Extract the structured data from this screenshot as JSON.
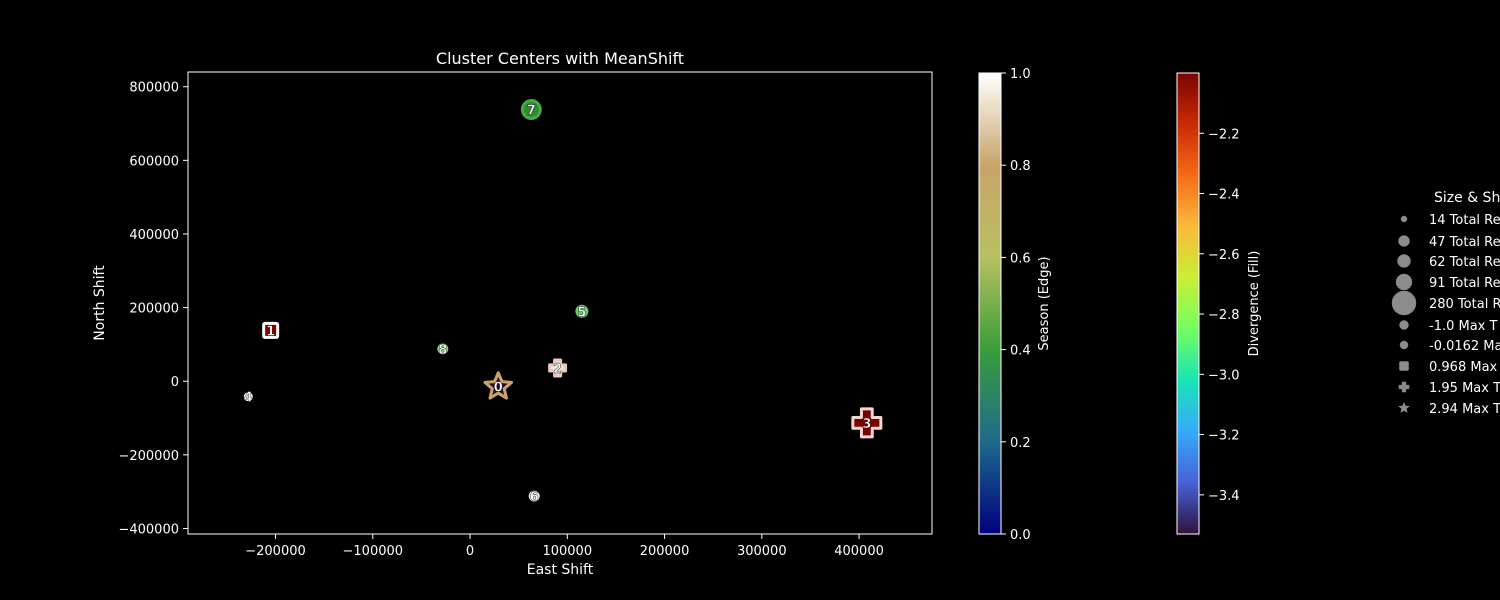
{
  "chart_data": {
    "type": "scatter",
    "title": "Cluster Centers with MeanShift",
    "xlabel": "East Shift",
    "ylabel": "North Shift",
    "xlim": [
      -290000,
      475000
    ],
    "ylim": [
      -415000,
      840000
    ],
    "x_ticks": [
      -200000,
      -100000,
      0,
      100000,
      200000,
      300000,
      400000
    ],
    "y_ticks": [
      -400000,
      -200000,
      0,
      200000,
      400000,
      600000,
      800000
    ],
    "background": "#000000",
    "points": [
      {
        "label": "0",
        "x": 29000,
        "y": -15000,
        "marker": "star",
        "size": 14,
        "fill": "#2a0a2e",
        "edge": "#c8a46a"
      },
      {
        "label": "1",
        "x": -205000,
        "y": 138000,
        "marker": "square",
        "size": 7,
        "fill": "#8b0000",
        "edge": "#ffffff"
      },
      {
        "label": "2",
        "x": 90000,
        "y": 36000,
        "marker": "plus",
        "size": 8,
        "fill": "#f0e0e0",
        "edge": "#e8c8c0"
      },
      {
        "label": "3",
        "x": 408000,
        "y": -113000,
        "marker": "plus",
        "size": 14,
        "fill": "#7a0000",
        "edge": "#f2d6d0"
      },
      {
        "label": "4",
        "x": -228000,
        "y": -42000,
        "marker": "circle",
        "size": 3,
        "fill": "#ffffff",
        "edge": "#ffffff"
      },
      {
        "label": "5",
        "x": 115000,
        "y": 190000,
        "marker": "circle",
        "size": 5,
        "fill": "#66cc66",
        "edge": "#66cc66"
      },
      {
        "label": "6",
        "x": 66000,
        "y": -312000,
        "marker": "circle",
        "size": 4,
        "fill": "#e8f5e8",
        "edge": "#e8f5e8"
      },
      {
        "label": "7",
        "x": 63000,
        "y": 738000,
        "marker": "circle",
        "size": 9,
        "fill": "#2e8b2e",
        "edge": "#4aa84a"
      },
      {
        "label": "8",
        "x": -28000,
        "y": 88000,
        "marker": "circle",
        "size": 4,
        "fill": "#7ed67e",
        "edge": "#7ed67e"
      }
    ],
    "colorbars": [
      {
        "label": "Season (Edge)",
        "range": [
          0.0,
          1.0
        ],
        "ticks": [
          "0.0",
          "0.2",
          "0.4",
          "0.6",
          "0.8",
          "1.0"
        ],
        "tick_values": [
          0.0,
          0.2,
          0.4,
          0.6,
          0.8,
          1.0
        ],
        "colors": [
          "#000080",
          "#1e6a8c",
          "#3a9e3a",
          "#b8c060",
          "#c8a46a",
          "#ffffff"
        ]
      },
      {
        "label": "Divergence (Fill)",
        "range": [
          -3.53,
          -2.0
        ],
        "ticks": [
          "−3.4",
          "−3.2",
          "−3.0",
          "−2.8",
          "−2.6",
          "−2.4",
          "−2.2"
        ],
        "tick_values": [
          -3.4,
          -3.2,
          -3.0,
          -2.8,
          -2.6,
          -2.4,
          -2.2
        ],
        "colors": [
          "#30123b",
          "#4662d7",
          "#36aaf9",
          "#1ae4b6",
          "#72fe5e",
          "#c8ef34",
          "#faba39",
          "#f66b19",
          "#ca2a04",
          "#7a0403"
        ]
      }
    ],
    "legend": {
      "title": "Size & Sh",
      "placement": "right",
      "items": [
        {
          "marker": "circle",
          "size": 3,
          "label": "14 Total Re"
        },
        {
          "marker": "circle",
          "size": 5.5,
          "label": "47 Total Re"
        },
        {
          "marker": "circle",
          "size": 6.5,
          "label": "62 Total Re"
        },
        {
          "marker": "circle",
          "size": 8,
          "label": "91 Total Re"
        },
        {
          "marker": "circle",
          "size": 12,
          "label": "280 Total R"
        },
        {
          "marker": "circle",
          "size": 4.5,
          "label": "-1.0 Max T"
        },
        {
          "marker": "circle",
          "size": 4,
          "label": "-0.0162 Ma"
        },
        {
          "marker": "square",
          "size": 4.5,
          "label": "0.968 Max"
        },
        {
          "marker": "plus",
          "size": 5,
          "label": "1.95 Max T"
        },
        {
          "marker": "star",
          "size": 5.5,
          "label": "2.94 Max T"
        }
      ]
    }
  }
}
